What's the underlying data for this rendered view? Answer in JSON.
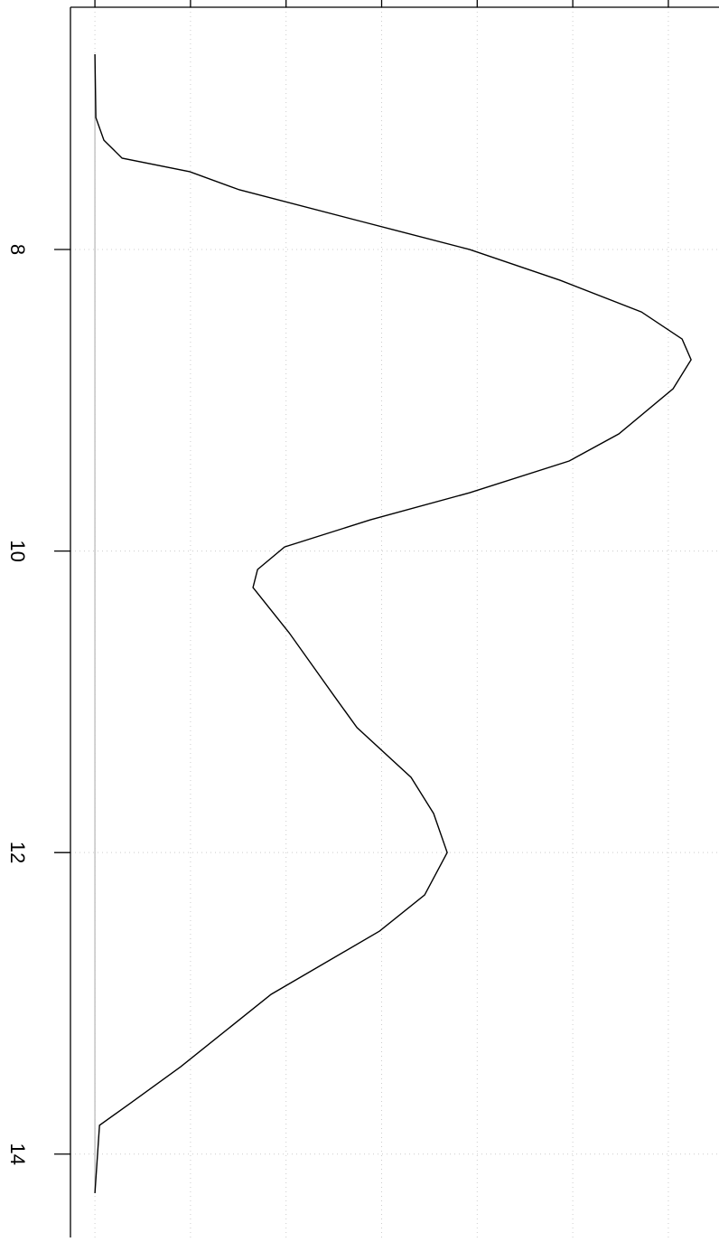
{
  "chart_data": {
    "type": "line",
    "orientation": "vertical",
    "x": [
      6.705,
      7.125,
      7.275,
      7.394,
      7.484,
      7.604,
      7.814,
      8.0,
      8.204,
      8.414,
      8.594,
      8.731,
      8.923,
      9.223,
      9.403,
      9.613,
      9.793,
      9.973,
      10.122,
      10.242,
      10.542,
      10.962,
      11.171,
      11.501,
      11.741,
      12.0,
      12.281,
      12.521,
      12.94,
      13.42,
      13.659,
      13.809,
      14.259
    ],
    "series": [
      {
        "color": "#000000",
        "values": [
          0,
          0.0005,
          0.0047,
          0.0142,
          0.0496,
          0.0756,
          0.1394,
          0.1961,
          0.2434,
          0.2859,
          0.3072,
          0.3119,
          0.3025,
          0.2741,
          0.2481,
          0.1961,
          0.1441,
          0.0992,
          0.0851,
          0.0827,
          0.1016,
          0.1252,
          0.1371,
          0.1654,
          0.1772,
          0.1843,
          0.1725,
          0.1489,
          0.0922,
          0.0449,
          0.0189,
          0.0024,
          0
        ]
      }
    ],
    "xlim": [
      6.393,
      14.553
    ],
    "xticks": [
      8,
      10,
      12,
      14
    ],
    "ylim": [
      -0.0128,
      0.3265
    ],
    "yticks": [
      0,
      0.05,
      0.1,
      0.15,
      0.2,
      0.25,
      0.3
    ],
    "grid": true
  }
}
